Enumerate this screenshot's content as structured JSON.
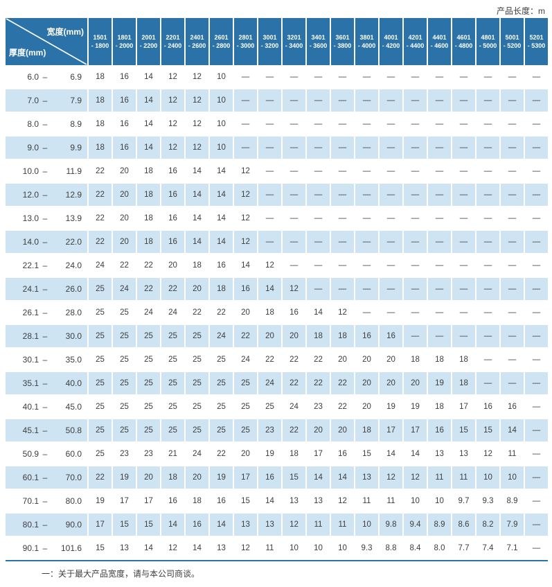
{
  "chart_data": {
    "type": "table",
    "unit_note": "产品长度：m",
    "corner": {
      "top": "宽度(mm)",
      "bottom": "厚度(mm)"
    },
    "label_dash": "–",
    "empty_symbol": "—",
    "footnote": "一：关于最大产品宽度，请与本公司商谈。",
    "colors": {
      "header_bg": "#2a72a7",
      "alt_row_bg": "#cfe4f3",
      "text": "#3d3d3d"
    },
    "columns": [
      [
        "1501",
        "- 1800"
      ],
      [
        "1801",
        "- 2000"
      ],
      [
        "2001",
        "- 2200"
      ],
      [
        "2201",
        "- 2400"
      ],
      [
        "2401",
        "- 2600"
      ],
      [
        "2601",
        "- 2800"
      ],
      [
        "2801",
        "- 3000"
      ],
      [
        "3001",
        "- 3200"
      ],
      [
        "3201",
        "- 3400"
      ],
      [
        "3401",
        "- 3600"
      ],
      [
        "3601",
        "- 3800"
      ],
      [
        "3801",
        "- 4000"
      ],
      [
        "4001",
        "- 4200"
      ],
      [
        "4201",
        "- 4400"
      ],
      [
        "4401",
        "- 4600"
      ],
      [
        "4601",
        "- 4800"
      ],
      [
        "4801",
        "- 5000"
      ],
      [
        "5001",
        "- 5200"
      ],
      [
        "5201",
        "- 5300"
      ]
    ],
    "rows": [
      {
        "from": "6.0",
        "to": "6.9",
        "values": [
          "18",
          "16",
          "14",
          "12",
          "12",
          "10",
          "—",
          "—",
          "—",
          "—",
          "—",
          "—",
          "—",
          "—",
          "—",
          "—",
          "—",
          "—",
          "—"
        ]
      },
      {
        "from": "7.0",
        "to": "7.9",
        "values": [
          "18",
          "16",
          "14",
          "12",
          "12",
          "10",
          "—",
          "—",
          "—",
          "—",
          "—",
          "—",
          "—",
          "—",
          "—",
          "—",
          "—",
          "—",
          "—"
        ]
      },
      {
        "from": "8.0",
        "to": "8.9",
        "values": [
          "18",
          "16",
          "14",
          "12",
          "12",
          "10",
          "—",
          "—",
          "—",
          "—",
          "—",
          "—",
          "—",
          "—",
          "—",
          "—",
          "—",
          "—",
          "—"
        ]
      },
      {
        "from": "9.0",
        "to": "9.9",
        "values": [
          "18",
          "16",
          "14",
          "12",
          "12",
          "10",
          "—",
          "—",
          "—",
          "—",
          "—",
          "—",
          "—",
          "—",
          "—",
          "—",
          "—",
          "—",
          "—"
        ]
      },
      {
        "from": "10.0",
        "to": "11.9",
        "values": [
          "22",
          "20",
          "18",
          "16",
          "14",
          "14",
          "12",
          "—",
          "—",
          "—",
          "—",
          "—",
          "—",
          "—",
          "—",
          "—",
          "—",
          "—",
          "—"
        ]
      },
      {
        "from": "12.0",
        "to": "12.9",
        "values": [
          "22",
          "20",
          "18",
          "16",
          "14",
          "14",
          "12",
          "—",
          "—",
          "—",
          "—",
          "—",
          "—",
          "—",
          "—",
          "—",
          "—",
          "—",
          "—"
        ]
      },
      {
        "from": "13.0",
        "to": "13.9",
        "values": [
          "22",
          "20",
          "18",
          "16",
          "14",
          "14",
          "12",
          "—",
          "—",
          "—",
          "—",
          "—",
          "—",
          "—",
          "—",
          "—",
          "—",
          "—",
          "—"
        ]
      },
      {
        "from": "14.0",
        "to": "22.0",
        "values": [
          "22",
          "20",
          "18",
          "16",
          "14",
          "14",
          "12",
          "—",
          "—",
          "—",
          "—",
          "—",
          "—",
          "—",
          "—",
          "—",
          "—",
          "—",
          "—"
        ]
      },
      {
        "from": "22.1",
        "to": "24.0",
        "values": [
          "24",
          "22",
          "22",
          "20",
          "18",
          "16",
          "14",
          "12",
          "—",
          "—",
          "—",
          "—",
          "—",
          "—",
          "—",
          "—",
          "—",
          "—",
          "—"
        ]
      },
      {
        "from": "24.1",
        "to": "26.0",
        "values": [
          "25",
          "24",
          "22",
          "22",
          "20",
          "18",
          "16",
          "14",
          "12",
          "—",
          "—",
          "—",
          "—",
          "—",
          "—",
          "—",
          "—",
          "—",
          "—"
        ]
      },
      {
        "from": "26.1",
        "to": "28.0",
        "values": [
          "25",
          "25",
          "24",
          "24",
          "22",
          "22",
          "20",
          "18",
          "16",
          "14",
          "12",
          "—",
          "—",
          "—",
          "—",
          "—",
          "—",
          "—",
          "—"
        ]
      },
      {
        "from": "28.1",
        "to": "30.0",
        "values": [
          "25",
          "25",
          "25",
          "25",
          "25",
          "24",
          "22",
          "20",
          "20",
          "18",
          "18",
          "16",
          "16",
          "—",
          "—",
          "—",
          "—",
          "—",
          "—"
        ]
      },
      {
        "from": "30.1",
        "to": "35.0",
        "values": [
          "25",
          "25",
          "25",
          "25",
          "25",
          "25",
          "24",
          "22",
          "22",
          "22",
          "20",
          "20",
          "20",
          "18",
          "18",
          "18",
          "—",
          "—",
          "—"
        ]
      },
      {
        "from": "35.1",
        "to": "40.0",
        "values": [
          "25",
          "25",
          "25",
          "25",
          "25",
          "25",
          "25",
          "24",
          "22",
          "22",
          "22",
          "20",
          "20",
          "20",
          "19",
          "18",
          "—",
          "—",
          "—"
        ]
      },
      {
        "from": "40.1",
        "to": "45.0",
        "values": [
          "25",
          "25",
          "25",
          "25",
          "25",
          "25",
          "25",
          "25",
          "24",
          "23",
          "22",
          "20",
          "19",
          "19",
          "18",
          "17",
          "16",
          "16",
          "—"
        ]
      },
      {
        "from": "45.1",
        "to": "50.8",
        "values": [
          "25",
          "25",
          "25",
          "25",
          "25",
          "25",
          "25",
          "23",
          "22",
          "20",
          "20",
          "18",
          "17",
          "17",
          "16",
          "15",
          "15",
          "14",
          "—"
        ]
      },
      {
        "from": "50.9",
        "to": "60.0",
        "values": [
          "25",
          "23",
          "23",
          "21",
          "24",
          "22",
          "20",
          "19",
          "18",
          "17",
          "16",
          "15",
          "14",
          "14",
          "13",
          "13",
          "12",
          "11",
          "—"
        ]
      },
      {
        "from": "60.1",
        "to": "70.0",
        "values": [
          "22",
          "19",
          "20",
          "18",
          "20",
          "19",
          "17",
          "16",
          "15",
          "14",
          "14",
          "13",
          "12",
          "12",
          "11",
          "11",
          "10",
          "10",
          "—"
        ]
      },
      {
        "from": "70.1",
        "to": "80.0",
        "values": [
          "19",
          "17",
          "17",
          "16",
          "18",
          "16",
          "15",
          "14",
          "13",
          "13",
          "12",
          "11",
          "11",
          "10",
          "10",
          "9.7",
          "9.3",
          "8.9",
          "—"
        ]
      },
      {
        "from": "80.1",
        "to": "90.0",
        "values": [
          "17",
          "15",
          "15",
          "14",
          "16",
          "14",
          "13",
          "13",
          "12",
          "11",
          "11",
          "10",
          "9.8",
          "9.4",
          "8.9",
          "8.6",
          "8.2",
          "7.9",
          "—"
        ]
      },
      {
        "from": "90.1",
        "to": "101.6",
        "values": [
          "15",
          "13",
          "14",
          "12",
          "14",
          "13",
          "12",
          "11",
          "10",
          "10",
          "10",
          "9.3",
          "8.8",
          "8.4",
          "8.0",
          "7.7",
          "7.4",
          "7.1",
          "—"
        ]
      }
    ]
  }
}
